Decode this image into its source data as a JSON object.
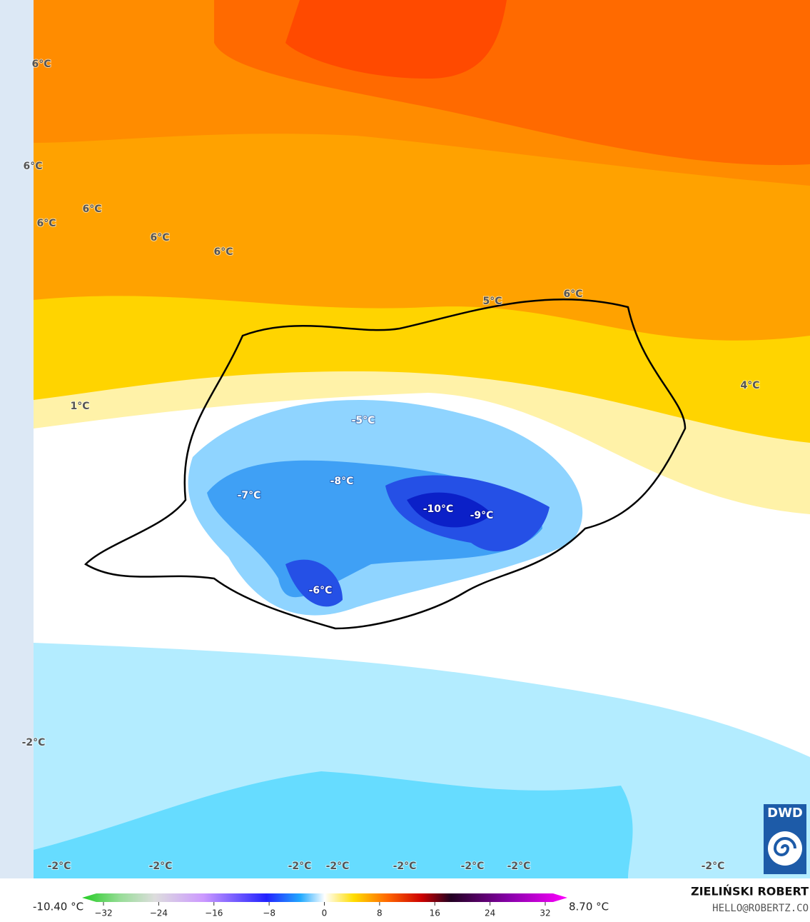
{
  "map": {
    "labels": [
      "6°C",
      "6°C",
      "6°C",
      "6°C",
      "6°C",
      "6°C",
      "5°C",
      "6°C",
      "4°C",
      "1°C",
      "-5°C",
      "-8°C",
      "-7°C",
      "-10°C",
      "-9°C",
      "-6°C",
      "-2°C",
      "-2°C",
      "-2°C",
      "-2°C",
      "-2°C",
      "-2°C",
      "-2°C",
      "-2°C",
      "-2°C"
    ],
    "logo": "DWD"
  },
  "colorbar": {
    "min_label": "-10.40 °C",
    "max_label": "8.70 °C",
    "ticks": [
      "−32",
      "−24",
      "−16",
      "−8",
      "0",
      "8",
      "16",
      "24",
      "32"
    ]
  },
  "credit": {
    "author": "ZIELIŃSKI ROBERT",
    "contact": "HELLO@ROBERTZ.CO"
  }
}
